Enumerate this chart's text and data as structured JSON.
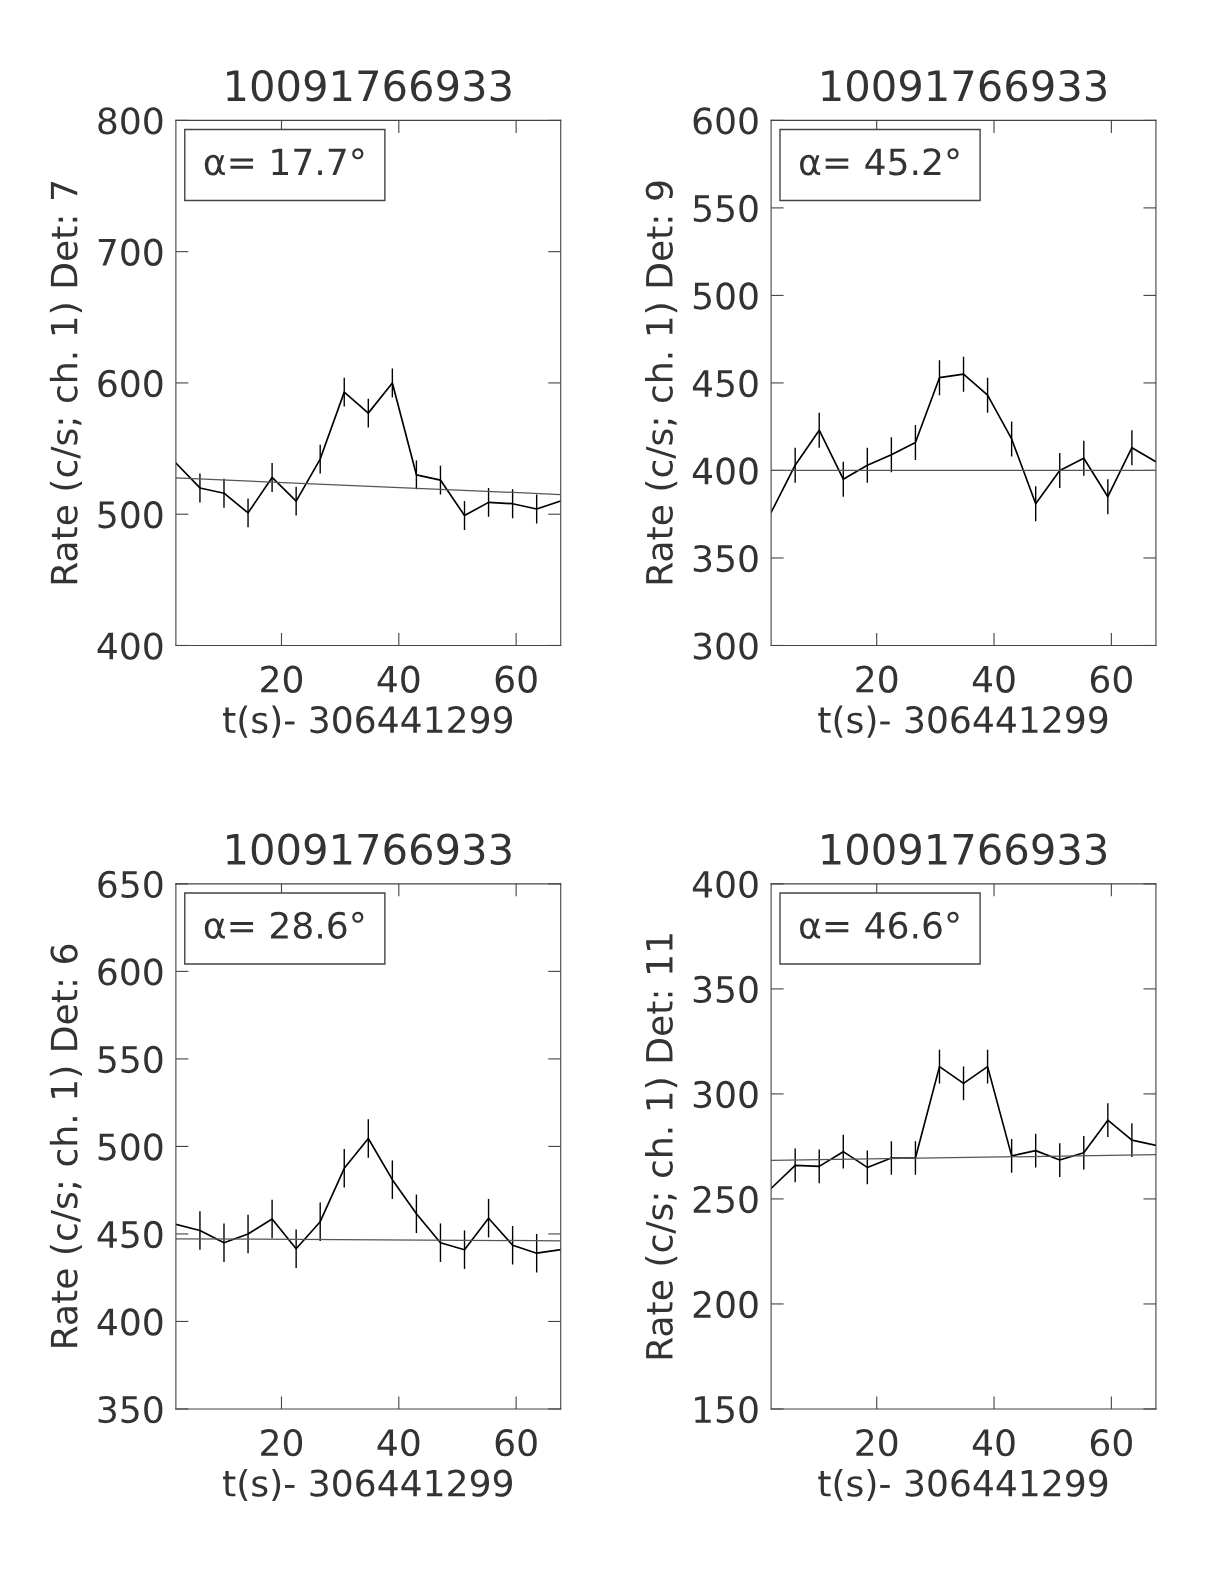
{
  "chart_data": [
    {
      "type": "line",
      "title": "10091766933",
      "xlabel": "t(s)- 306441299",
      "ylabel": "Rate (c/s; ch. 1) Det: 7",
      "annotations": [
        "α= 17.7°"
      ],
      "xlim": [
        2,
        67.6
      ],
      "xticks": [
        20,
        40,
        60
      ],
      "ylim": [
        400,
        800
      ],
      "yticks": [
        400,
        500,
        600,
        700,
        800
      ],
      "grid": false,
      "series": [
        {
          "color": "#000000",
          "x": [
            2,
            6.1,
            10.2,
            14.3,
            18.4,
            22.5,
            26.6,
            30.7,
            34.8,
            38.9,
            43,
            47.1,
            51.2,
            55.3,
            59.4,
            63.5,
            67.6
          ],
          "values": [
            539,
            520,
            516,
            501,
            528,
            510,
            542,
            593,
            577,
            600,
            530,
            526,
            499,
            509,
            508,
            504,
            510
          ],
          "errors": [
            null,
            11,
            11,
            11,
            11,
            11,
            11,
            11,
            11,
            11,
            11,
            11,
            11,
            11,
            11,
            11,
            null
          ]
        },
        {
          "color": "#555555",
          "x": [
            2,
            67.6
          ],
          "values": [
            527.6,
            515
          ]
        }
      ]
    },
    {
      "type": "line",
      "title": "10091766933",
      "xlabel": "t(s)- 306441299",
      "ylabel": "Rate (c/s; ch. 1) Det: 9",
      "annotations": [
        "α= 45.2°"
      ],
      "xlim": [
        2,
        67.6
      ],
      "xticks": [
        20,
        40,
        60
      ],
      "ylim": [
        300,
        600
      ],
      "yticks": [
        300,
        350,
        400,
        450,
        500,
        550,
        600
      ],
      "grid": false,
      "series": [
        {
          "color": "#000000",
          "x": [
            2,
            6.1,
            10.2,
            14.3,
            18.4,
            22.5,
            26.6,
            30.7,
            34.8,
            38.9,
            43,
            47.1,
            51.2,
            55.3,
            59.4,
            63.5,
            67.6
          ],
          "values": [
            376,
            403,
            423,
            395,
            403,
            409,
            416,
            453,
            455,
            443,
            418,
            381,
            400,
            407,
            385,
            413,
            405
          ],
          "errors": [
            null,
            10,
            10,
            10,
            10,
            10,
            10,
            10,
            10,
            10,
            10,
            10,
            10,
            10,
            10,
            10,
            null
          ]
        },
        {
          "color": "#555555",
          "x": [
            2,
            67.6
          ],
          "values": [
            400,
            400
          ]
        }
      ]
    },
    {
      "type": "line",
      "title": "10091766933",
      "xlabel": "t(s)- 306441299",
      "ylabel": "Rate (c/s; ch. 1) Det: 6",
      "annotations": [
        "α= 28.6°"
      ],
      "xlim": [
        2,
        67.6
      ],
      "xticks": [
        20,
        40,
        60
      ],
      "ylim": [
        350,
        650
      ],
      "yticks": [
        350,
        400,
        450,
        500,
        550,
        600,
        650
      ],
      "grid": false,
      "series": [
        {
          "color": "#000000",
          "x": [
            2,
            6.1,
            10.2,
            14.3,
            18.4,
            22.5,
            26.6,
            30.7,
            34.8,
            38.9,
            43,
            47.1,
            51.2,
            55.3,
            59.4,
            63.5,
            67.6
          ],
          "values": [
            455.5,
            452,
            445,
            450,
            458.5,
            441.5,
            457,
            487.5,
            504.5,
            481,
            461.5,
            445,
            441,
            459,
            443.5,
            439,
            441
          ],
          "errors": [
            null,
            11,
            11,
            11,
            11,
            11,
            11,
            11,
            11,
            11,
            11,
            11,
            11,
            11,
            11,
            11,
            null
          ]
        },
        {
          "color": "#555555",
          "x": [
            2,
            67.6
          ],
          "values": [
            447.2,
            446.1
          ]
        }
      ]
    },
    {
      "type": "line",
      "title": "10091766933",
      "xlabel": "t(s)- 306441299",
      "ylabel": "Rate (c/s; ch. 1) Det: 11",
      "annotations": [
        "α= 46.6°"
      ],
      "xlim": [
        2,
        67.6
      ],
      "xticks": [
        20,
        40,
        60
      ],
      "ylim": [
        150,
        400
      ],
      "yticks": [
        150,
        200,
        250,
        300,
        350,
        400
      ],
      "grid": false,
      "series": [
        {
          "color": "#000000",
          "x": [
            2,
            6.1,
            10.2,
            14.3,
            18.4,
            22.5,
            26.6,
            30.7,
            34.8,
            38.9,
            43,
            47.1,
            51.2,
            55.3,
            59.4,
            63.5,
            67.6
          ],
          "values": [
            255,
            266,
            265.5,
            272.5,
            265,
            269.5,
            269.5,
            313,
            305,
            313,
            270.5,
            273,
            268.5,
            272,
            287.5,
            278,
            275.5
          ],
          "errors": [
            null,
            8,
            8,
            8,
            8,
            8,
            8,
            8,
            8,
            8,
            8,
            8,
            8,
            8,
            8,
            8,
            null
          ]
        },
        {
          "color": "#555555",
          "x": [
            2,
            67.6
          ],
          "values": [
            268.3,
            271.1
          ]
        }
      ]
    }
  ]
}
